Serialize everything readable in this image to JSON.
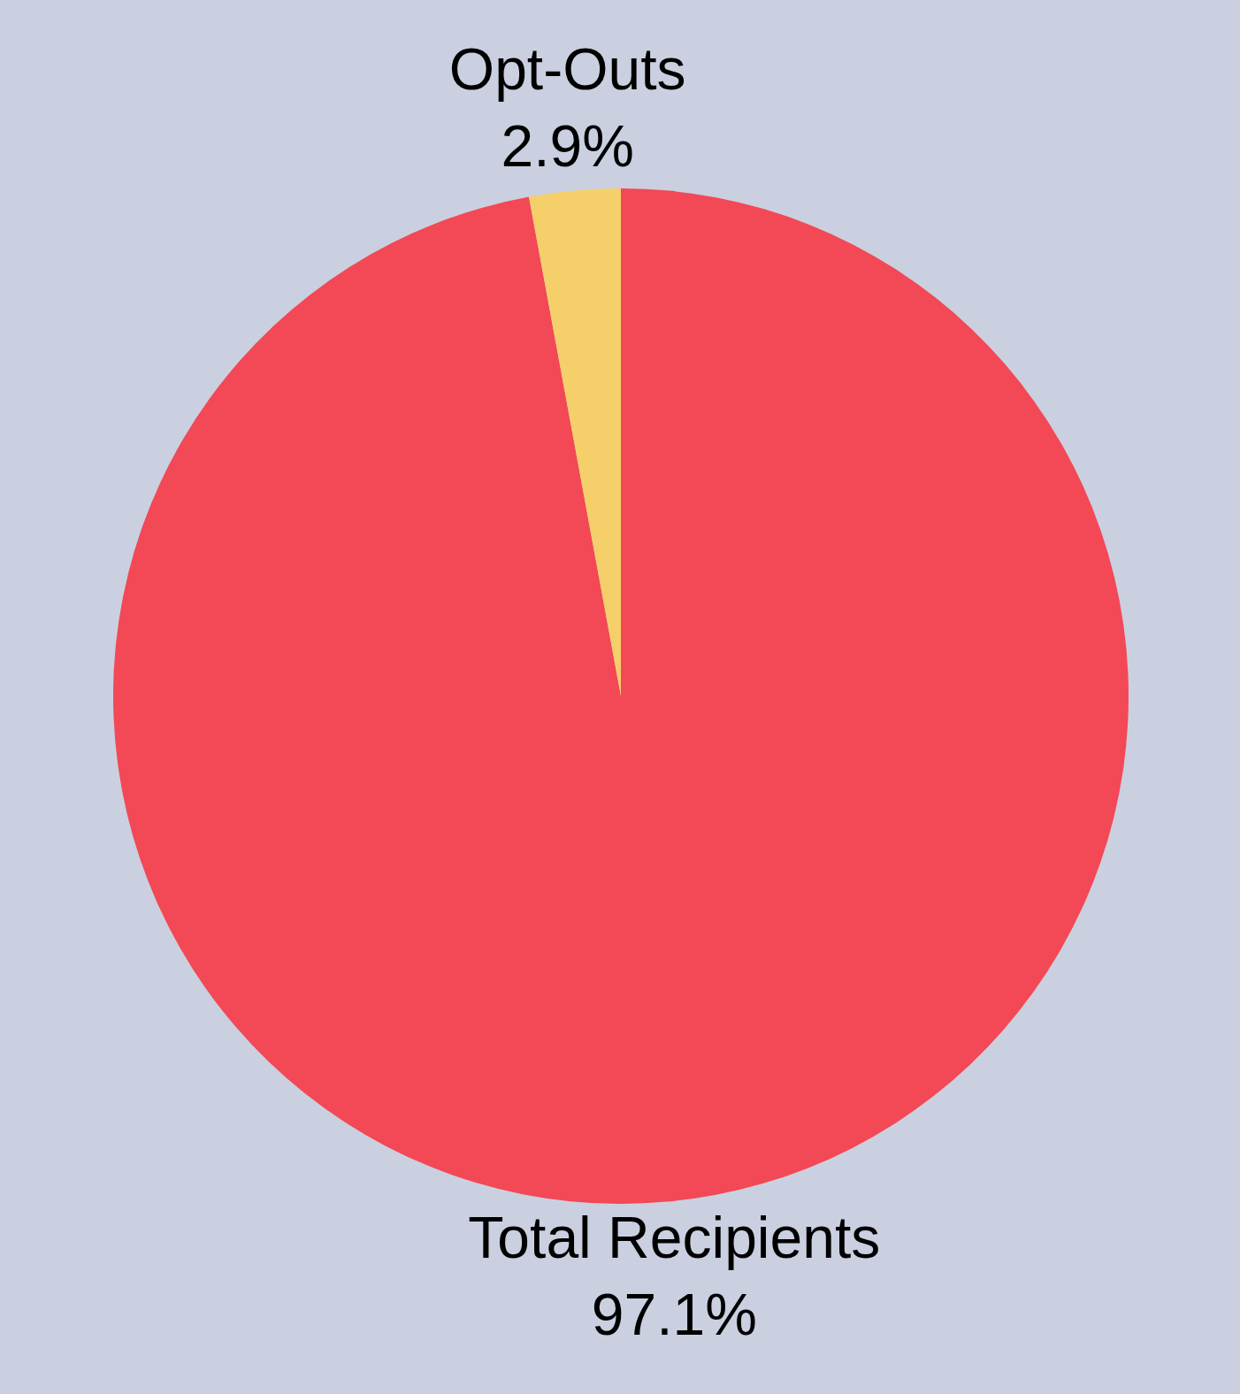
{
  "chart_data": {
    "type": "pie",
    "categories": [
      "Total Recipients",
      "Opt-Outs"
    ],
    "values": [
      97.1,
      2.9
    ],
    "colors": [
      "#f34855",
      "#f5cf69"
    ],
    "value_labels": [
      "97.1%",
      "2.9%"
    ]
  }
}
